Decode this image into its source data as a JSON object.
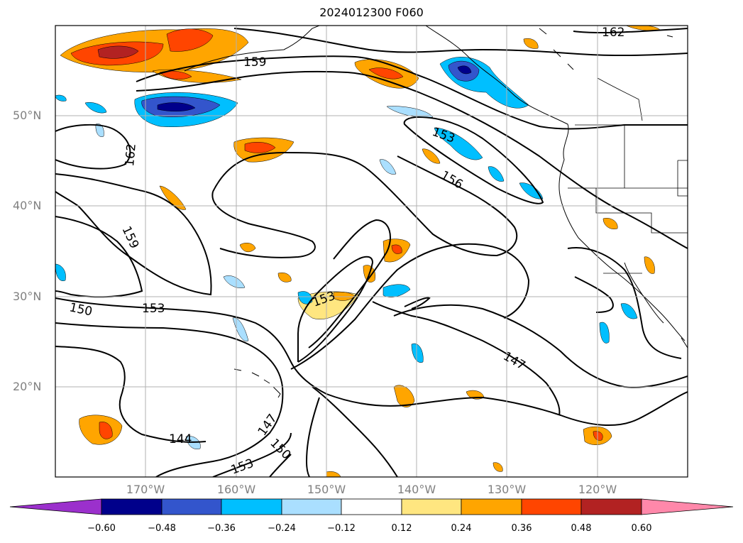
{
  "title": "2024012300 F060",
  "latitude_labels": [
    "50°N",
    "40°N",
    "30°N",
    "20°N"
  ],
  "longitude_labels": [
    "170°W",
    "160°W",
    "150°W",
    "140°W",
    "130°W",
    "120°W"
  ],
  "contour_labels": [
    "162",
    "159",
    "162",
    "153",
    "156",
    "159",
    "150",
    "153",
    "153",
    "147",
    "144",
    "147",
    "150",
    "153"
  ],
  "colorbar": {
    "colors": [
      "#9b30cc",
      "#00008b",
      "#3355cc",
      "#00bfff",
      "#aadfff",
      "#ffffff",
      "#ffe680",
      "#ffa500",
      "#ff4500",
      "#b22222",
      "#ff88aa"
    ],
    "tick_labels": [
      "−0.60",
      "−0.48",
      "−0.36",
      "−0.24",
      "−0.12",
      "0.12",
      "0.24",
      "0.36",
      "0.48",
      "0.60"
    ]
  }
}
